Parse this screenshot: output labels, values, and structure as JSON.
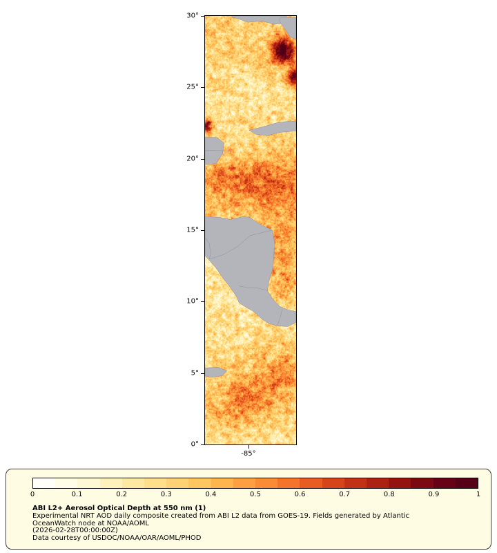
{
  "map": {
    "lat_tick_labels": [
      "30°",
      "25°",
      "20°",
      "15°",
      "10°",
      "5°",
      "0°"
    ],
    "lon_tick_labels": [
      "-85°"
    ]
  },
  "legend": {
    "title": "ABI L2+ Aerosol Optical Depth at 550 nm (1)",
    "description": "Experimental NRT AOD daily composite created from ABI L2 data from GOES-19. Fields generated by Atlantic OceanWatch node at NOAA/AOML",
    "timestamp": "(2026-02-28T00:00:00Z)",
    "courtesy": "Data courtesy of USDOC/NOAA/OAR/AOML/PHOD",
    "tick_labels": [
      "0",
      "0.1",
      "0.2",
      "0.3",
      "0.4",
      "0.5",
      "0.6",
      "0.7",
      "0.8",
      "0.9",
      "1"
    ],
    "panel_background": "#FEFCE3",
    "panel_border": "#3A3A3A"
  },
  "chart_data": {
    "type": "heatmap",
    "title": "ABI L2+ Aerosol Optical Depth at 550 nm (1)",
    "colorbar_range": [
      0,
      1
    ],
    "colorbar_ticks": [
      0,
      0.1,
      0.2,
      0.3,
      0.4,
      0.5,
      0.6,
      0.7,
      0.8,
      0.9,
      1
    ],
    "colorbar_segments": 20,
    "map_extent": {
      "lon": [
        -88.1,
        -81.6
      ],
      "lat": [
        0,
        30
      ]
    },
    "lat_ticks_deg": [
      30,
      25,
      20,
      15,
      10,
      5,
      0
    ],
    "lon_ticks_deg": [
      -85
    ],
    "land_color": "#b4b4bb",
    "coast_color": "#8f8f97",
    "colormap_stops": [
      [
        0.0,
        "#FFFFFF"
      ],
      [
        0.05,
        "#FFFDF0"
      ],
      [
        0.1,
        "#FFFADF"
      ],
      [
        0.15,
        "#FFF5C8"
      ],
      [
        0.2,
        "#FFEDB0"
      ],
      [
        0.25,
        "#FFE494"
      ],
      [
        0.3,
        "#FFD97E"
      ],
      [
        0.35,
        "#FFCC68"
      ],
      [
        0.4,
        "#FFBE55"
      ],
      [
        0.45,
        "#FFAB47"
      ],
      [
        0.5,
        "#FD953B"
      ],
      [
        0.55,
        "#F8802F"
      ],
      [
        0.6,
        "#EE6824"
      ],
      [
        0.65,
        "#E0511D"
      ],
      [
        0.7,
        "#CC3A17"
      ],
      [
        0.75,
        "#B62813"
      ],
      [
        0.8,
        "#A01910"
      ],
      [
        0.85,
        "#870C10"
      ],
      [
        0.9,
        "#700314"
      ],
      [
        0.95,
        "#5E0018"
      ],
      [
        1.0,
        "#4E0016"
      ]
    ],
    "aod_trend_by_lat": [
      [
        30,
        0.3
      ],
      [
        28.5,
        0.33
      ],
      [
        27,
        0.32
      ],
      [
        25.5,
        0.27
      ],
      [
        24,
        0.25
      ],
      [
        22.5,
        0.28
      ],
      [
        21,
        0.3
      ],
      [
        20,
        0.33
      ],
      [
        19,
        0.4
      ],
      [
        18,
        0.43
      ],
      [
        17,
        0.41
      ],
      [
        16,
        0.37
      ],
      [
        15,
        0.34
      ],
      [
        14,
        0.3
      ],
      [
        12.5,
        0.26
      ],
      [
        11,
        0.24
      ],
      [
        9.5,
        0.24
      ],
      [
        8,
        0.27
      ],
      [
        6.5,
        0.3
      ],
      [
        5,
        0.31
      ],
      [
        3.5,
        0.31
      ],
      [
        2,
        0.29
      ],
      [
        0,
        0.27
      ]
    ],
    "high_aod_blobs": [
      [
        -82.5,
        27.55,
        0.6,
        0.68,
        0.72
      ],
      [
        -81.75,
        25.65,
        0.42,
        0.5,
        0.6
      ],
      [
        -87.95,
        22.3,
        0.25,
        0.32,
        0.65
      ],
      [
        -83.0,
        18.5,
        2.0,
        1.15,
        0.16
      ],
      [
        -86.4,
        18.8,
        1.4,
        0.9,
        0.1
      ],
      [
        -82.8,
        13.3,
        0.8,
        1.8,
        0.2
      ],
      [
        -82.0,
        11.0,
        0.9,
        0.9,
        0.13
      ],
      [
        -84.3,
        3.7,
        1.5,
        1.2,
        0.22
      ],
      [
        -82.3,
        5.2,
        1.0,
        1.0,
        0.15
      ],
      [
        -86.2,
        2.3,
        1.2,
        0.9,
        0.14
      ]
    ],
    "land_polygons": {
      "gulf_coast": [
        [
          -86.15,
          30
        ],
        [
          -82.3,
          30
        ],
        [
          -82.25,
          29.5
        ],
        [
          -83.2,
          29.42
        ],
        [
          -84.05,
          29.65
        ],
        [
          -85.05,
          29.55
        ],
        [
          -85.65,
          29.78
        ],
        [
          -86.15,
          29.9
        ]
      ],
      "florida": [
        [
          -82.75,
          29.9
        ],
        [
          -81.6,
          29.9
        ],
        [
          -81.6,
          28.35
        ],
        [
          -82.05,
          28.55
        ],
        [
          -82.45,
          29.15
        ],
        [
          -82.75,
          29.55
        ]
      ],
      "cuba": [
        [
          -84.95,
          22.0
        ],
        [
          -84.1,
          22.2
        ],
        [
          -83.05,
          22.5
        ],
        [
          -82.0,
          22.65
        ],
        [
          -81.6,
          22.6
        ],
        [
          -81.6,
          21.95
        ],
        [
          -82.7,
          21.85
        ],
        [
          -83.7,
          21.62
        ],
        [
          -84.5,
          21.72
        ]
      ],
      "yucatan": [
        [
          -88.1,
          21.5
        ],
        [
          -87.25,
          21.5
        ],
        [
          -86.75,
          21.1
        ],
        [
          -86.85,
          20.35
        ],
        [
          -87.35,
          19.65
        ],
        [
          -88.1,
          19.6
        ]
      ],
      "central_america": [
        [
          -88.1,
          15.95
        ],
        [
          -87.1,
          15.9
        ],
        [
          -86.3,
          15.75
        ],
        [
          -85.4,
          15.95
        ],
        [
          -84.9,
          15.9
        ],
        [
          -84.25,
          15.45
        ],
        [
          -83.3,
          15.0
        ],
        [
          -83.15,
          14.2
        ],
        [
          -83.2,
          13.0
        ],
        [
          -83.3,
          12.2
        ],
        [
          -83.55,
          11.4
        ],
        [
          -83.65,
          10.75
        ],
        [
          -83.2,
          10.1
        ],
        [
          -82.75,
          9.65
        ],
        [
          -82.1,
          9.4
        ],
        [
          -81.6,
          9.3
        ],
        [
          -81.6,
          8.55
        ],
        [
          -82.2,
          8.25
        ],
        [
          -82.9,
          8.3
        ],
        [
          -83.5,
          8.45
        ],
        [
          -84.0,
          8.75
        ],
        [
          -84.7,
          9.35
        ],
        [
          -85.25,
          9.65
        ],
        [
          -85.67,
          9.92
        ],
        [
          -85.85,
          10.35
        ],
        [
          -86.3,
          11.0
        ],
        [
          -86.75,
          11.55
        ],
        [
          -87.35,
          12.4
        ],
        [
          -87.85,
          12.95
        ],
        [
          -88.1,
          13.2
        ]
      ],
      "pacific_patch": [
        [
          -88.1,
          5.35
        ],
        [
          -87.15,
          5.4
        ],
        [
          -86.55,
          5.15
        ],
        [
          -86.85,
          4.82
        ],
        [
          -87.6,
          4.7
        ],
        [
          -88.1,
          4.8
        ]
      ]
    },
    "border_lines": [
      [
        [
          -87.78,
          12.98
        ],
        [
          -86.8,
          13.28
        ],
        [
          -85.78,
          13.85
        ],
        [
          -84.9,
          14.62
        ],
        [
          -83.32,
          15.0
        ]
      ],
      [
        [
          -85.7,
          11.1
        ],
        [
          -84.9,
          10.95
        ],
        [
          -84.35,
          10.95
        ],
        [
          -83.66,
          10.78
        ]
      ],
      [
        [
          -82.95,
          8.3
        ],
        [
          -82.72,
          8.95
        ],
        [
          -82.6,
          9.45
        ]
      ],
      [
        [
          -88.1,
          14.5
        ],
        [
          -87.78,
          14.05
        ],
        [
          -87.72,
          13.35
        ],
        [
          -87.78,
          12.98
        ]
      ],
      [
        [
          -88.1,
          20.6
        ],
        [
          -86.2,
          20.55
        ]
      ]
    ]
  }
}
